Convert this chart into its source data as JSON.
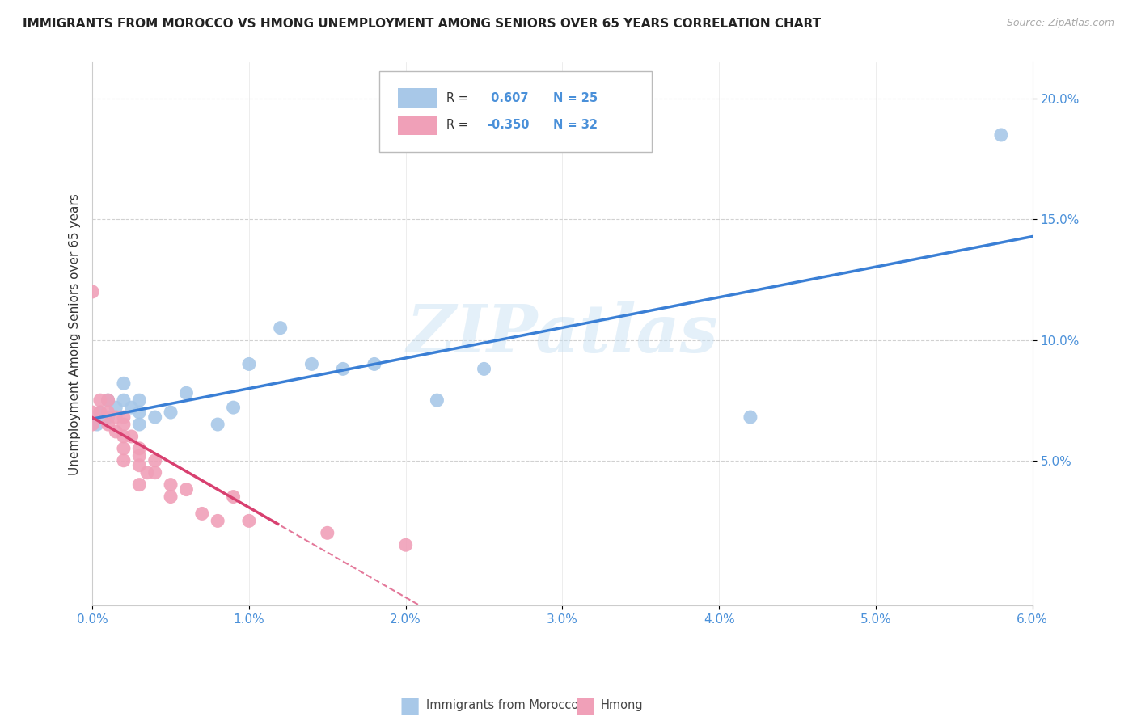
{
  "title": "IMMIGRANTS FROM MOROCCO VS HMONG UNEMPLOYMENT AMONG SENIORS OVER 65 YEARS CORRELATION CHART",
  "source": "Source: ZipAtlas.com",
  "ylabel": "Unemployment Among Seniors over 65 years",
  "xlim": [
    0.0,
    0.06
  ],
  "ylim": [
    -0.01,
    0.215
  ],
  "yticks": [
    0.05,
    0.1,
    0.15,
    0.2
  ],
  "xticks": [
    0.0,
    0.01,
    0.02,
    0.03,
    0.04,
    0.05,
    0.06
  ],
  "background_color": "#ffffff",
  "watermark": "ZIPatlas",
  "morocco_color": "#a8c8e8",
  "hmong_color": "#f0a0b8",
  "morocco_line_color": "#3a7fd5",
  "hmong_line_color": "#d84070",
  "R_morocco": 0.607,
  "N_morocco": 25,
  "R_hmong": -0.35,
  "N_hmong": 32,
  "morocco_x": [
    0.0003,
    0.0005,
    0.001,
    0.001,
    0.0015,
    0.002,
    0.002,
    0.0025,
    0.003,
    0.003,
    0.003,
    0.004,
    0.005,
    0.006,
    0.008,
    0.009,
    0.01,
    0.012,
    0.014,
    0.016,
    0.018,
    0.022,
    0.025,
    0.042,
    0.058
  ],
  "morocco_y": [
    0.065,
    0.07,
    0.068,
    0.075,
    0.072,
    0.075,
    0.082,
    0.072,
    0.07,
    0.075,
    0.065,
    0.068,
    0.07,
    0.078,
    0.065,
    0.072,
    0.09,
    0.105,
    0.09,
    0.088,
    0.09,
    0.075,
    0.088,
    0.068,
    0.185
  ],
  "hmong_x": [
    0.0,
    0.0,
    0.0,
    0.0005,
    0.0005,
    0.001,
    0.001,
    0.001,
    0.0015,
    0.0015,
    0.002,
    0.002,
    0.002,
    0.002,
    0.002,
    0.0025,
    0.003,
    0.003,
    0.003,
    0.003,
    0.0035,
    0.004,
    0.004,
    0.005,
    0.005,
    0.006,
    0.007,
    0.008,
    0.009,
    0.01,
    0.015,
    0.02
  ],
  "hmong_y": [
    0.12,
    0.07,
    0.065,
    0.075,
    0.07,
    0.075,
    0.07,
    0.065,
    0.068,
    0.062,
    0.068,
    0.065,
    0.06,
    0.055,
    0.05,
    0.06,
    0.055,
    0.052,
    0.048,
    0.04,
    0.045,
    0.05,
    0.045,
    0.04,
    0.035,
    0.038,
    0.028,
    0.025,
    0.035,
    0.025,
    0.02,
    0.015
  ]
}
